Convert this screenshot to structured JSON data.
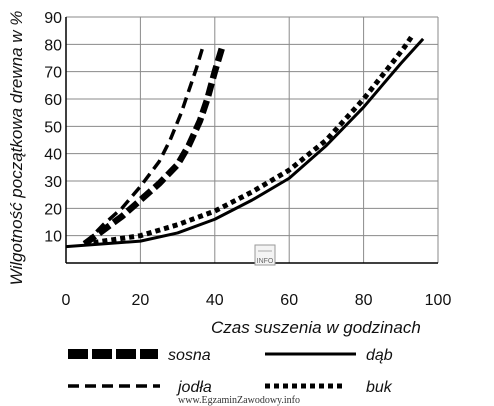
{
  "chart_data": {
    "type": "line",
    "title": "",
    "xlabel": "Czas suszenia w godzinach",
    "ylabel": "Wilgotność początkowa drewna w %",
    "xlim": [
      0,
      100
    ],
    "ylim": [
      0,
      90
    ],
    "xticks": [
      0,
      20,
      40,
      60,
      80,
      100
    ],
    "yticks": [
      10,
      20,
      30,
      40,
      50,
      60,
      70,
      80,
      90
    ],
    "grid": true,
    "legend_position": "bottom",
    "series": [
      {
        "name": "sosna",
        "style": "thick-dashed",
        "color": "#000000",
        "x": [
          5,
          10,
          15,
          20,
          25,
          30,
          33,
          36,
          38,
          40,
          42
        ],
        "y": [
          7,
          12,
          17,
          23,
          29,
          36,
          43,
          52,
          60,
          70,
          79
        ]
      },
      {
        "name": "jodła",
        "style": "dashed",
        "color": "#000000",
        "x": [
          5,
          10,
          15,
          20,
          25,
          28,
          31,
          33,
          35,
          37
        ],
        "y": [
          7,
          14,
          20,
          28,
          37,
          45,
          55,
          63,
          71,
          80
        ]
      },
      {
        "name": "dąb",
        "style": "solid",
        "color": "#000000",
        "x": [
          0,
          10,
          20,
          30,
          40,
          50,
          60,
          70,
          80,
          90,
          96
        ],
        "y": [
          6,
          7,
          8,
          11,
          16,
          23,
          31,
          43,
          57,
          73,
          82
        ]
      },
      {
        "name": "buk",
        "style": "dotted",
        "color": "#000000",
        "x": [
          5,
          10,
          20,
          30,
          40,
          50,
          60,
          70,
          80,
          87,
          91,
          93
        ],
        "y": [
          7,
          8,
          10,
          14,
          19,
          26,
          34,
          45,
          60,
          72,
          79,
          83
        ]
      }
    ]
  },
  "watermark": "www.EgzaminZawodowy.info",
  "logo_text": "INFO"
}
